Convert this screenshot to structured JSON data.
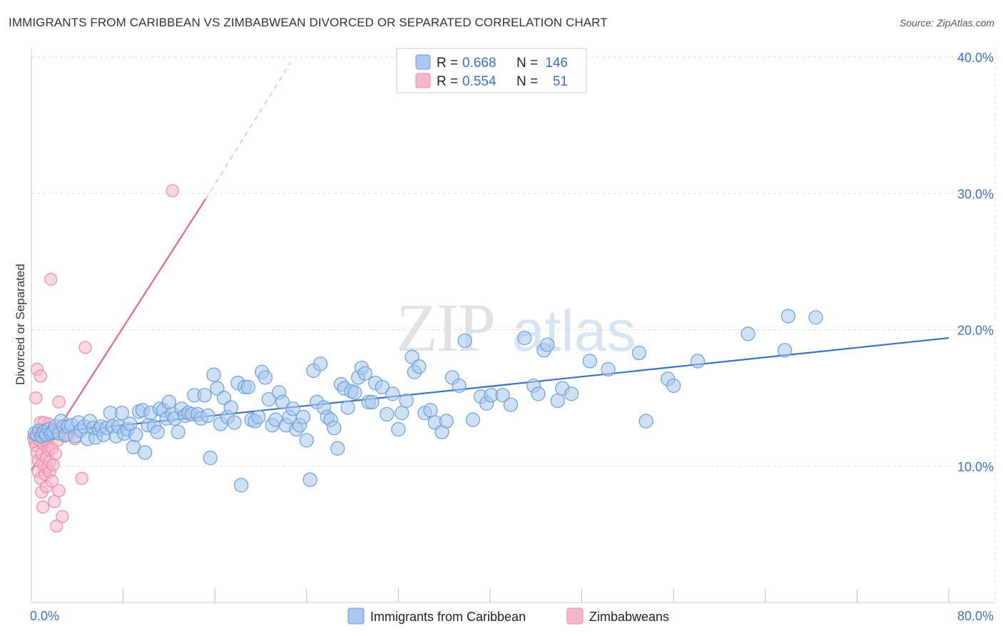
{
  "title": "IMMIGRANTS FROM CARIBBEAN VS ZIMBABWEAN DIVORCED OR SEPARATED CORRELATION CHART",
  "source": "Source: ZipAtlas.com",
  "watermark": {
    "zip": "ZIP",
    "atlas": "atlas"
  },
  "colors": {
    "blue_fill": "#aac8ef",
    "blue_stroke": "#6b9ed8",
    "blue_line": "#3a73c4",
    "pink_fill": "#f6b8cb",
    "pink_stroke": "#ec8aaa",
    "pink_line": "#e4668f",
    "tick_text": "#3a73c4",
    "grid": "#dddddd"
  },
  "legend": {
    "r_label": "R =",
    "n_label": "N =",
    "rows": [
      {
        "series": "Immigrants from Caribbean",
        "r": "0.668",
        "n": "146"
      },
      {
        "series": "Zimbabweans",
        "r": "0.554",
        "n": "51"
      }
    ]
  },
  "chart_data": {
    "type": "scatter",
    "title": "IMMIGRANTS FROM CARIBBEAN VS ZIMBABWEAN DIVORCED OR SEPARATED CORRELATION CHART",
    "xlabel": "",
    "ylabel": "Divorced or Separated",
    "xlim": [
      0,
      80
    ],
    "ylim": [
      0,
      40
    ],
    "x_tick_labels": [
      {
        "value": 0,
        "label": "0.0%"
      },
      {
        "value": 80,
        "label": "80.0%"
      }
    ],
    "y_tick_labels": [
      {
        "value": 10,
        "label": "10.0%"
      },
      {
        "value": 20,
        "label": "20.0%"
      },
      {
        "value": 30,
        "label": "30.0%"
      },
      {
        "value": 40,
        "label": "40.0%"
      }
    ],
    "x_minor_ticks": [
      8,
      16,
      24,
      32,
      40,
      48,
      56,
      64,
      72
    ],
    "grid": true,
    "series": [
      {
        "name": "Immigrants from Caribbean",
        "color": "blue",
        "trend": {
          "x": [
            0,
            80
          ],
          "y": [
            12.3,
            19.4
          ],
          "style": "solid"
        },
        "points": [
          [
            0.3,
            12.4
          ],
          [
            0.5,
            12.3
          ],
          [
            0.7,
            12.6
          ],
          [
            0.9,
            12.2
          ],
          [
            1.1,
            12.5
          ],
          [
            1.3,
            12.3
          ],
          [
            1.5,
            12.7
          ],
          [
            1.7,
            12.4
          ],
          [
            1.9,
            12.5
          ],
          [
            2.1,
            12.9
          ],
          [
            2.4,
            12.4
          ],
          [
            2.6,
            13.3
          ],
          [
            2.8,
            12.9
          ],
          [
            3.0,
            12.3
          ],
          [
            3.2,
            12.9
          ],
          [
            3.5,
            13.0
          ],
          [
            3.8,
            12.2
          ],
          [
            4.1,
            13.2
          ],
          [
            4.3,
            12.6
          ],
          [
            4.6,
            12.9
          ],
          [
            4.9,
            12.0
          ],
          [
            5.1,
            13.3
          ],
          [
            5.4,
            12.8
          ],
          [
            5.6,
            12.1
          ],
          [
            5.9,
            12.7
          ],
          [
            6.1,
            12.9
          ],
          [
            6.3,
            12.3
          ],
          [
            6.6,
            12.8
          ],
          [
            6.9,
            13.9
          ],
          [
            7.1,
            12.9
          ],
          [
            7.4,
            12.2
          ],
          [
            7.6,
            12.9
          ],
          [
            7.9,
            13.9
          ],
          [
            8.1,
            12.4
          ],
          [
            8.4,
            12.7
          ],
          [
            8.6,
            13.1
          ],
          [
            8.9,
            11.4
          ],
          [
            9.1,
            12.3
          ],
          [
            9.4,
            14.0
          ],
          [
            9.7,
            14.1
          ],
          [
            9.9,
            11.0
          ],
          [
            10.2,
            13.0
          ],
          [
            10.4,
            13.9
          ],
          [
            10.7,
            12.9
          ],
          [
            11.0,
            12.5
          ],
          [
            11.2,
            14.2
          ],
          [
            11.5,
            14.1
          ],
          [
            11.8,
            13.5
          ],
          [
            12.0,
            14.7
          ],
          [
            12.3,
            13.8
          ],
          [
            12.5,
            13.5
          ],
          [
            12.8,
            12.5
          ],
          [
            13.1,
            14.2
          ],
          [
            13.4,
            13.7
          ],
          [
            13.7,
            13.9
          ],
          [
            14.0,
            13.8
          ],
          [
            14.2,
            15.2
          ],
          [
            14.5,
            13.8
          ],
          [
            14.8,
            13.5
          ],
          [
            15.1,
            15.2
          ],
          [
            15.4,
            13.7
          ],
          [
            15.6,
            10.6
          ],
          [
            15.9,
            16.7
          ],
          [
            16.2,
            15.7
          ],
          [
            16.5,
            13.1
          ],
          [
            16.8,
            15.0
          ],
          [
            17.1,
            13.6
          ],
          [
            17.4,
            14.3
          ],
          [
            17.7,
            13.2
          ],
          [
            18.0,
            16.1
          ],
          [
            18.3,
            8.6
          ],
          [
            18.6,
            15.8
          ],
          [
            18.9,
            15.8
          ],
          [
            19.2,
            13.4
          ],
          [
            19.5,
            13.3
          ],
          [
            19.8,
            13.6
          ],
          [
            20.1,
            16.9
          ],
          [
            20.4,
            16.5
          ],
          [
            20.7,
            14.9
          ],
          [
            21.0,
            13.0
          ],
          [
            21.3,
            13.4
          ],
          [
            21.6,
            15.4
          ],
          [
            21.9,
            14.7
          ],
          [
            22.2,
            13.0
          ],
          [
            22.5,
            13.6
          ],
          [
            22.8,
            14.2
          ],
          [
            23.1,
            12.7
          ],
          [
            23.4,
            13.0
          ],
          [
            23.7,
            13.6
          ],
          [
            24.0,
            11.9
          ],
          [
            24.3,
            9.0
          ],
          [
            24.6,
            17.0
          ],
          [
            24.9,
            14.7
          ],
          [
            25.2,
            17.5
          ],
          [
            25.5,
            14.3
          ],
          [
            25.8,
            13.6
          ],
          [
            26.1,
            13.4
          ],
          [
            26.4,
            12.8
          ],
          [
            26.7,
            11.3
          ],
          [
            27.0,
            16.0
          ],
          [
            27.3,
            15.7
          ],
          [
            27.6,
            14.3
          ],
          [
            27.9,
            15.5
          ],
          [
            28.2,
            15.4
          ],
          [
            28.5,
            16.5
          ],
          [
            28.8,
            17.2
          ],
          [
            29.1,
            16.8
          ],
          [
            29.4,
            14.7
          ],
          [
            29.7,
            14.7
          ],
          [
            30.0,
            16.1
          ],
          [
            30.6,
            15.8
          ],
          [
            31.0,
            13.8
          ],
          [
            31.5,
            15.3
          ],
          [
            32.0,
            12.7
          ],
          [
            32.3,
            13.9
          ],
          [
            32.7,
            14.8
          ],
          [
            33.2,
            18.0
          ],
          [
            33.4,
            16.9
          ],
          [
            33.8,
            17.3
          ],
          [
            34.3,
            13.9
          ],
          [
            34.8,
            14.1
          ],
          [
            35.2,
            13.2
          ],
          [
            35.8,
            12.5
          ],
          [
            36.2,
            13.3
          ],
          [
            36.7,
            16.5
          ],
          [
            37.3,
            15.9
          ],
          [
            37.8,
            19.2
          ],
          [
            38.5,
            13.4
          ],
          [
            39.2,
            15.1
          ],
          [
            39.7,
            14.6
          ],
          [
            40.1,
            15.2
          ],
          [
            41.1,
            15.2
          ],
          [
            41.8,
            14.5
          ],
          [
            43.0,
            19.4
          ],
          [
            43.8,
            15.9
          ],
          [
            44.2,
            15.3
          ],
          [
            44.7,
            18.5
          ],
          [
            45.0,
            18.9
          ],
          [
            45.9,
            14.8
          ],
          [
            46.3,
            15.7
          ],
          [
            47.1,
            15.3
          ],
          [
            48.7,
            17.7
          ],
          [
            50.3,
            17.1
          ],
          [
            53.0,
            18.3
          ],
          [
            53.6,
            13.3
          ],
          [
            55.5,
            16.4
          ],
          [
            56.0,
            15.9
          ],
          [
            58.1,
            17.7
          ],
          [
            62.5,
            19.7
          ],
          [
            65.7,
            18.5
          ],
          [
            66.0,
            21.0
          ],
          [
            68.4,
            20.9
          ]
        ]
      },
      {
        "name": "Zimbabweans",
        "color": "pink",
        "trend": {
          "x": [
            0,
            15.2
          ],
          "y": [
            9.7,
            29.6
          ],
          "style": "solid",
          "dashed_extension": {
            "x": [
              15.2,
              22.6
            ],
            "y": [
              29.6,
              39.6
            ]
          }
        },
        "points": [
          [
            0.2,
            12.1
          ],
          [
            0.3,
            11.8
          ],
          [
            0.4,
            11.5
          ],
          [
            0.5,
            12.3
          ],
          [
            0.5,
            11.0
          ],
          [
            0.6,
            10.4
          ],
          [
            0.6,
            9.6
          ],
          [
            0.7,
            12.5
          ],
          [
            0.7,
            11.9
          ],
          [
            0.8,
            13.2
          ],
          [
            0.8,
            9.1
          ],
          [
            0.9,
            10.9
          ],
          [
            0.9,
            8.1
          ],
          [
            1.0,
            12.0
          ],
          [
            1.0,
            7.0
          ],
          [
            1.1,
            11.6
          ],
          [
            1.1,
            10.0
          ],
          [
            1.2,
            9.4
          ],
          [
            1.2,
            12.2
          ],
          [
            1.3,
            8.5
          ],
          [
            1.3,
            10.6
          ],
          [
            1.4,
            11.8
          ],
          [
            1.4,
            9.9
          ],
          [
            1.5,
            11.2
          ],
          [
            1.5,
            13.1
          ],
          [
            1.6,
            10.3
          ],
          [
            1.6,
            9.6
          ],
          [
            1.7,
            12.5
          ],
          [
            1.8,
            8.9
          ],
          [
            1.8,
            11.3
          ],
          [
            1.9,
            10.1
          ],
          [
            2.0,
            12.7
          ],
          [
            2.0,
            7.4
          ],
          [
            2.1,
            10.9
          ],
          [
            2.2,
            5.6
          ],
          [
            2.3,
            11.9
          ],
          [
            2.4,
            8.2
          ],
          [
            2.4,
            14.7
          ],
          [
            2.5,
            12.4
          ],
          [
            2.7,
            6.3
          ],
          [
            2.9,
            12.2
          ],
          [
            0.4,
            15.0
          ],
          [
            0.5,
            17.1
          ],
          [
            0.8,
            16.6
          ],
          [
            1.1,
            13.2
          ],
          [
            1.7,
            23.7
          ],
          [
            3.2,
            12.3
          ],
          [
            3.8,
            12.0
          ],
          [
            4.4,
            9.1
          ],
          [
            4.7,
            18.7
          ],
          [
            12.3,
            30.2
          ]
        ]
      }
    ]
  }
}
